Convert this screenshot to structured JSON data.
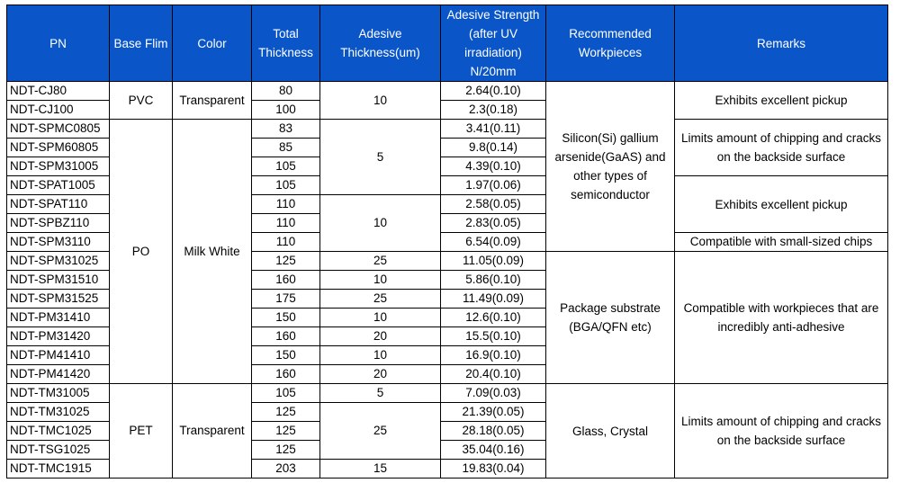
{
  "headers": {
    "pn": "PN",
    "base_film": "Base Flim",
    "color": "Color",
    "total_thickness": "Total Thickness",
    "adhesive_thickness": "Adesive Thickness(um)",
    "adhesive_strength": "Adesive Strength (after UV irradiation) N/20mm",
    "recommended": "Recommended Workpieces",
    "remarks": "Remarks"
  },
  "rows": [
    {
      "pn": "NDT-CJ80",
      "total": "80",
      "strength": "2.64(0.10)"
    },
    {
      "pn": "NDT-CJ100",
      "total": "100",
      "strength": "2.3(0.18)"
    },
    {
      "pn": "NDT-SPMC0805",
      "total": "83",
      "strength": "3.41(0.11)"
    },
    {
      "pn": "NDT-SPM60805",
      "total": "85",
      "strength": "9.8(0.14)"
    },
    {
      "pn": "NDT-SPM31005",
      "total": "105",
      "strength": "4.39(0.10)"
    },
    {
      "pn": "NDT-SPAT1005",
      "total": "105",
      "strength": "1.97(0.06)"
    },
    {
      "pn": "NDT-SPAT110",
      "total": "110",
      "strength": "2.58(0.05)"
    },
    {
      "pn": "NDT-SPBZ110",
      "total": "110",
      "strength": "2.83(0.05)"
    },
    {
      "pn": "NDT-SPM3110",
      "total": "110",
      "strength": "6.54(0.09)"
    },
    {
      "pn": "NDT-SPM31025",
      "total": "125",
      "strength": "11.05(0.09)"
    },
    {
      "pn": "NDT-SPM31510",
      "total": "160",
      "strength": "5.86(0.10)"
    },
    {
      "pn": "NDT-SPM31525",
      "total": "175",
      "strength": "11.49(0.09)"
    },
    {
      "pn": "NDT-PM31410",
      "total": "150",
      "strength": "12.6(0.10)"
    },
    {
      "pn": "NDT-PM31420",
      "total": "160",
      "strength": "15.5(0.10)"
    },
    {
      "pn": "NDT-PM41410",
      "total": "150",
      "strength": "16.9(0.10)"
    },
    {
      "pn": "NDT-PM41420",
      "total": "160",
      "strength": "20.4(0.10)"
    },
    {
      "pn": "NDT-TM31005",
      "total": "105",
      "strength": "7.09(0.03)"
    },
    {
      "pn": "NDT-TM31025",
      "total": "125",
      "strength": "21.39(0.05)"
    },
    {
      "pn": "NDT-TMC1025",
      "total": "125",
      "strength": "28.18(0.05)"
    },
    {
      "pn": "NDT-TSG1025",
      "total": "125",
      "strength": "35.04(0.16)"
    },
    {
      "pn": "NDT-TMC1915",
      "total": "203",
      "strength": "19.83(0.04)"
    }
  ],
  "base_film_groups": [
    {
      "label": "PVC"
    },
    {
      "label": "PO"
    },
    {
      "label": "PET"
    }
  ],
  "color_groups": [
    {
      "label": "Transparent"
    },
    {
      "label": "Milk White"
    },
    {
      "label": "Transparent"
    }
  ],
  "adhesive_groups": [
    {
      "label": "10"
    },
    {
      "label": "5"
    },
    {
      "label": "10"
    },
    {
      "label": "25"
    },
    {
      "label": "10"
    },
    {
      "label": "25"
    },
    {
      "label": "10"
    },
    {
      "label": "20"
    },
    {
      "label": "10"
    },
    {
      "label": "20"
    },
    {
      "label": "5"
    },
    {
      "label": "25"
    },
    {
      "label": "15"
    }
  ],
  "recommended_groups": [
    {
      "label": "Silicon(Si) gallium arsenide(GaAS) and other types of semiconductor"
    },
    {
      "label": "Package substrate (BGA/QFN etc)"
    },
    {
      "label": "Glass, Crystal"
    }
  ],
  "remark_groups": [
    {
      "label": "Exhibits excellent pickup"
    },
    {
      "label": "Limits amount of chipping and cracks on the backside surface"
    },
    {
      "label": "Exhibits excellent pickup"
    },
    {
      "label": "Compatible with small-sized chips"
    },
    {
      "label": "Compatible with workpieces that are incredibly anti-adhesive"
    },
    {
      "label": "Limits amount of chipping and cracks on the backside surface"
    }
  ],
  "colors": {
    "header_background": "#0a56c8",
    "header_text": "#ffffff",
    "border": "#000000"
  }
}
